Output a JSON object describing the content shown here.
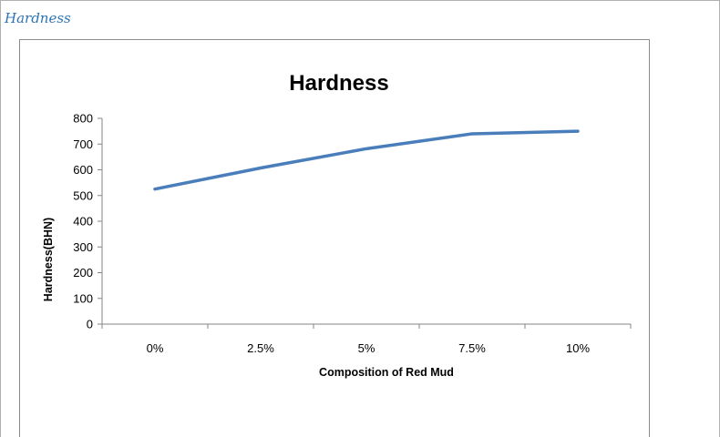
{
  "page": {
    "heading": "Hardness"
  },
  "chart_data": {
    "type": "line",
    "title": "Hardness",
    "xlabel": "Composition of Red Mud",
    "ylabel": "Hardness(BHN)",
    "categories": [
      "0%",
      "2.5%",
      "5%",
      "7.5%",
      "10%"
    ],
    "series": [
      {
        "values": [
          525,
          607,
          682,
          740,
          750
        ],
        "color": "#4a7ebb"
      }
    ],
    "ylim": [
      0,
      800
    ],
    "yticks": [
      0,
      100,
      200,
      300,
      400,
      500,
      600,
      700,
      800
    ],
    "grid": false,
    "legend": "none"
  }
}
